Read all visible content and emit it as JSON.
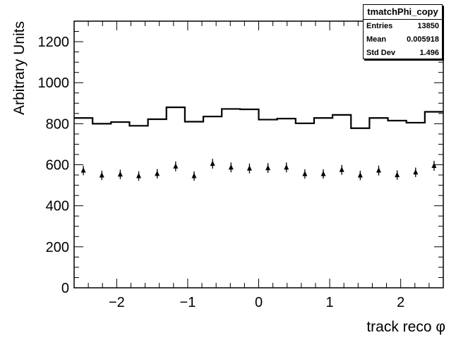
{
  "chart_data": {
    "type": "histogram",
    "ylabel": "Arbitrary Units",
    "xlabel": "track reco φ",
    "xlim": [
      -2.6,
      2.6
    ],
    "ylim": [
      0,
      1300
    ],
    "x_ticks": [
      "−2",
      "−1",
      "0",
      "1",
      "2"
    ],
    "y_ticks": [
      "0",
      "200",
      "400",
      "600",
      "800",
      "1000",
      "1200"
    ],
    "series": [
      {
        "style": "step",
        "bin_edges": [
          -2.6,
          -2.34,
          -2.08,
          -1.82,
          -1.56,
          -1.3,
          -1.04,
          -0.78,
          -0.52,
          -0.26,
          0.0,
          0.26,
          0.52,
          0.78,
          1.04,
          1.3,
          1.56,
          1.82,
          2.08,
          2.34,
          2.6
        ],
        "values": [
          828,
          800,
          808,
          790,
          822,
          880,
          810,
          835,
          872,
          870,
          820,
          825,
          802,
          828,
          843,
          778,
          828,
          815,
          805,
          858
        ]
      },
      {
        "style": "points",
        "x": [
          -2.47,
          -2.21,
          -1.95,
          -1.69,
          -1.43,
          -1.17,
          -0.91,
          -0.65,
          -0.39,
          -0.13,
          0.13,
          0.39,
          0.65,
          0.91,
          1.17,
          1.43,
          1.69,
          1.95,
          2.21,
          2.47
        ],
        "values": [
          572,
          548,
          553,
          545,
          556,
          592,
          545,
          605,
          587,
          582,
          584,
          587,
          555,
          555,
          575,
          548,
          572,
          550,
          563,
          595
        ],
        "errors": [
          23,
          23,
          23,
          23,
          23,
          24,
          23,
          24,
          24,
          24,
          24,
          24,
          23,
          23,
          24,
          23,
          24,
          23,
          23,
          24
        ]
      }
    ]
  },
  "stats": {
    "title": "tmatchPhi_copy",
    "rows": [
      {
        "label": "Entries",
        "value": "13850"
      },
      {
        "label": "Mean",
        "value": "0.005918"
      },
      {
        "label": "Std Dev",
        "value": "1.496"
      }
    ]
  }
}
